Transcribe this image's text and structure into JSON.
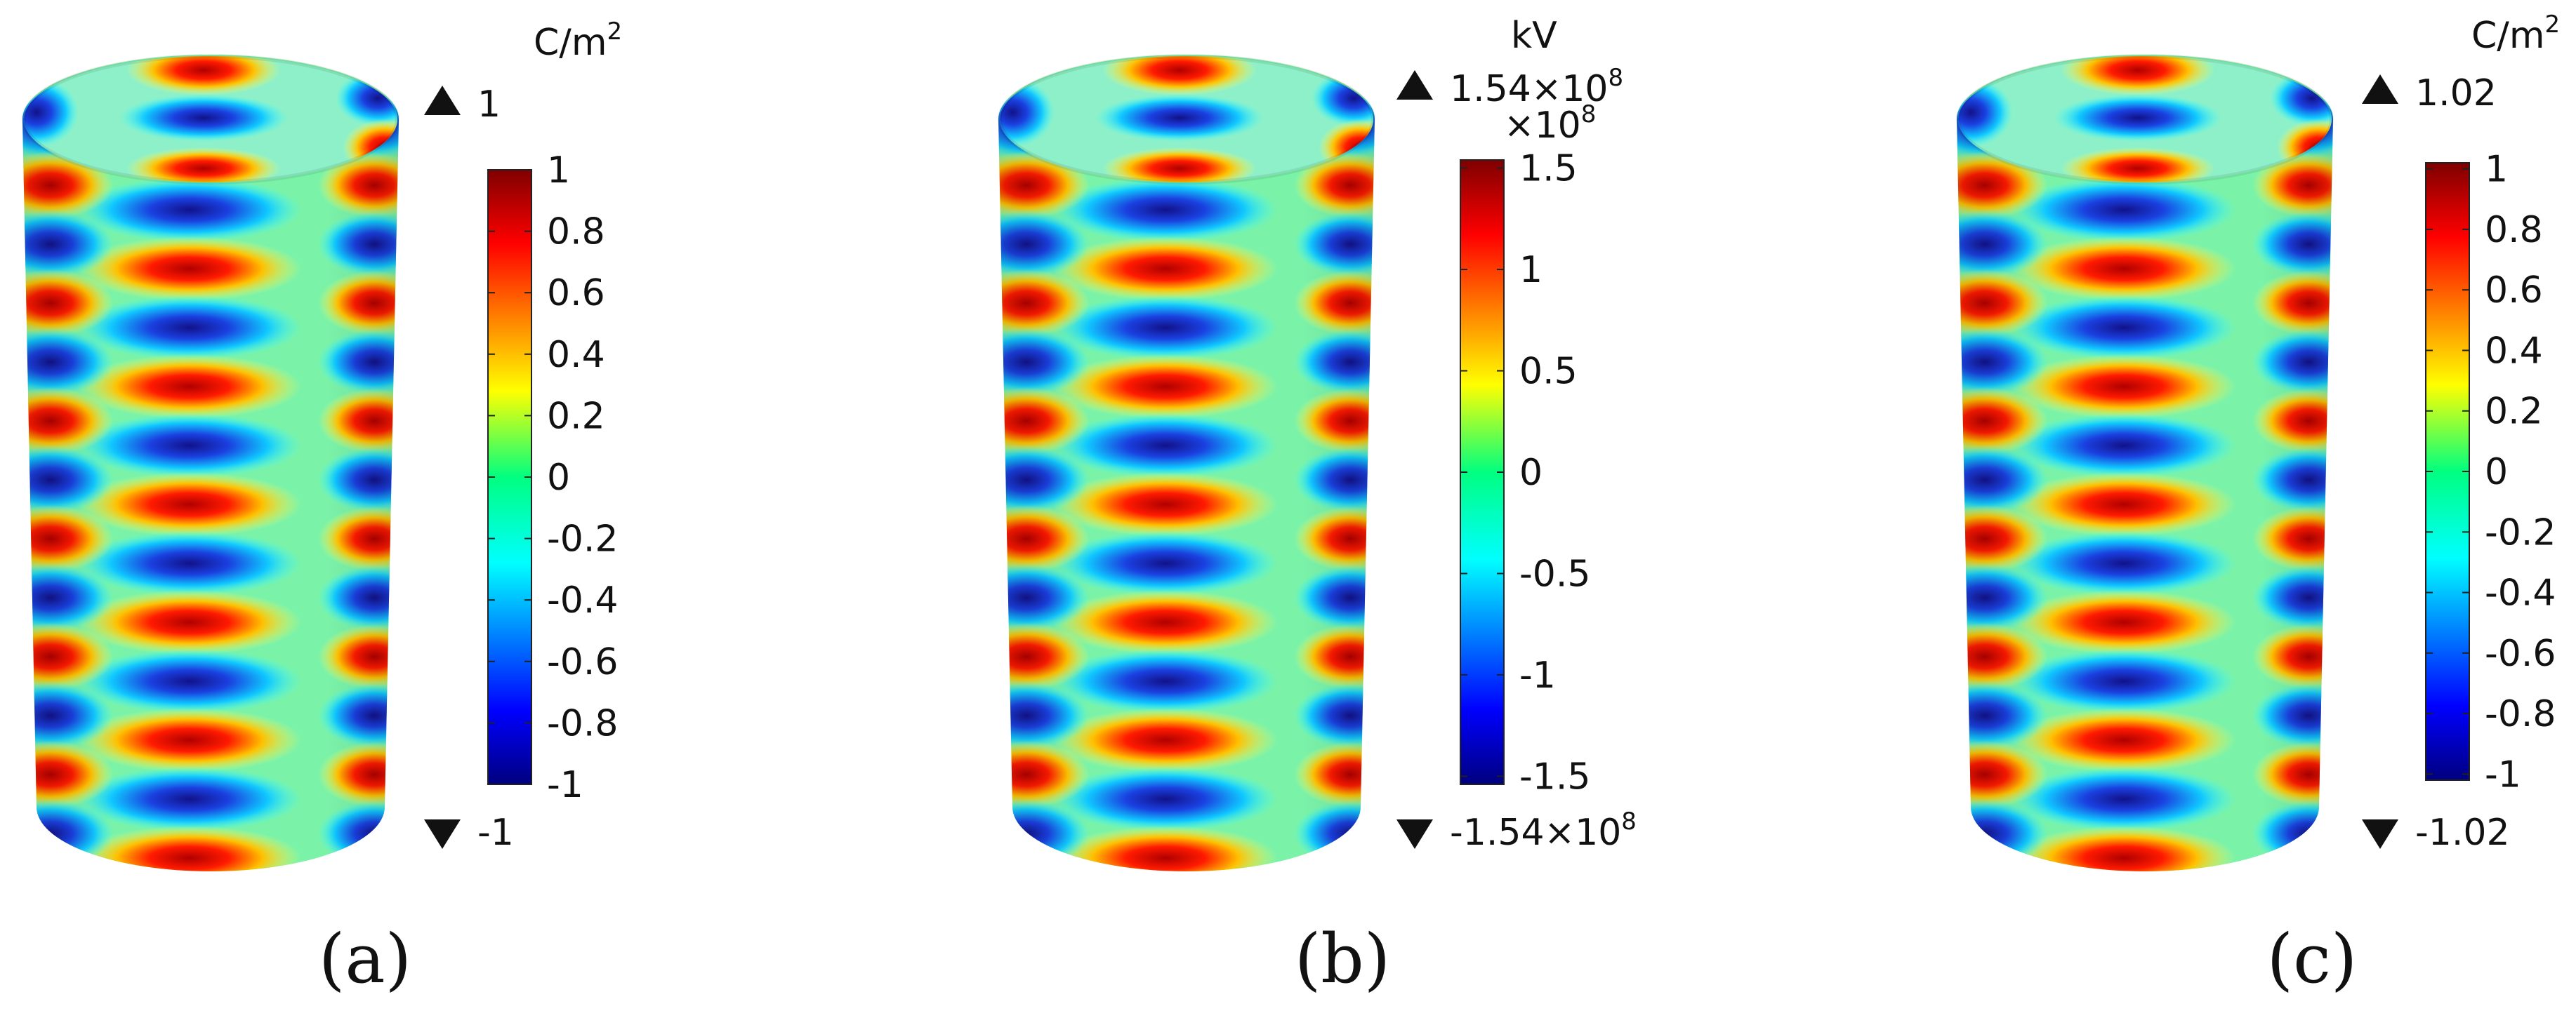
{
  "panels": [
    {
      "id": "a",
      "caption": "(a)",
      "unit": "C/m",
      "unit_sup": "2",
      "max_label": "1",
      "min_label": "-1",
      "scale_base": "",
      "scale_exp": "",
      "ticks": [
        {
          "label": "1",
          "value": 1
        },
        {
          "label": "0.8",
          "value": 0.8
        },
        {
          "label": "0.6",
          "value": 0.6
        },
        {
          "label": "0.4",
          "value": 0.4
        },
        {
          "label": "0.2",
          "value": 0.2
        },
        {
          "label": "0",
          "value": 0
        },
        {
          "label": "-0.2",
          "value": -0.2
        },
        {
          "label": "-0.4",
          "value": -0.4
        },
        {
          "label": "-0.6",
          "value": -0.6
        },
        {
          "label": "-0.8",
          "value": -0.8
        },
        {
          "label": "-1",
          "value": -1
        }
      ],
      "range": [
        -1,
        1
      ]
    },
    {
      "id": "b",
      "caption": "(b)",
      "unit": "kV",
      "unit_sup": "",
      "max_label": "1.54×10",
      "max_sup": "8",
      "min_label": "-1.54×10",
      "min_sup": "8",
      "scale_base": "×10",
      "scale_exp": "8",
      "ticks": [
        {
          "label": "1.5",
          "value": 1.5
        },
        {
          "label": "1",
          "value": 1
        },
        {
          "label": "0.5",
          "value": 0.5
        },
        {
          "label": "0",
          "value": 0
        },
        {
          "label": "-0.5",
          "value": -0.5
        },
        {
          "label": "-1",
          "value": -1
        },
        {
          "label": "-1.5",
          "value": -1.5
        }
      ],
      "range": [
        -1.54,
        1.54
      ]
    },
    {
      "id": "c",
      "caption": "(c)",
      "unit": "C/m",
      "unit_sup": "2",
      "max_label": "1.02",
      "min_label": "-1.02",
      "scale_base": "",
      "scale_exp": "",
      "ticks": [
        {
          "label": "1",
          "value": 1
        },
        {
          "label": "0.8",
          "value": 0.8
        },
        {
          "label": "0.6",
          "value": 0.6
        },
        {
          "label": "0.4",
          "value": 0.4
        },
        {
          "label": "0.2",
          "value": 0.2
        },
        {
          "label": "0",
          "value": 0
        },
        {
          "label": "-0.2",
          "value": -0.2
        },
        {
          "label": "-0.4",
          "value": -0.4
        },
        {
          "label": "-0.6",
          "value": -0.6
        },
        {
          "label": "-0.8",
          "value": -0.8
        },
        {
          "label": "-1",
          "value": -1
        }
      ],
      "range": [
        -1.02,
        1.02
      ]
    }
  ]
}
